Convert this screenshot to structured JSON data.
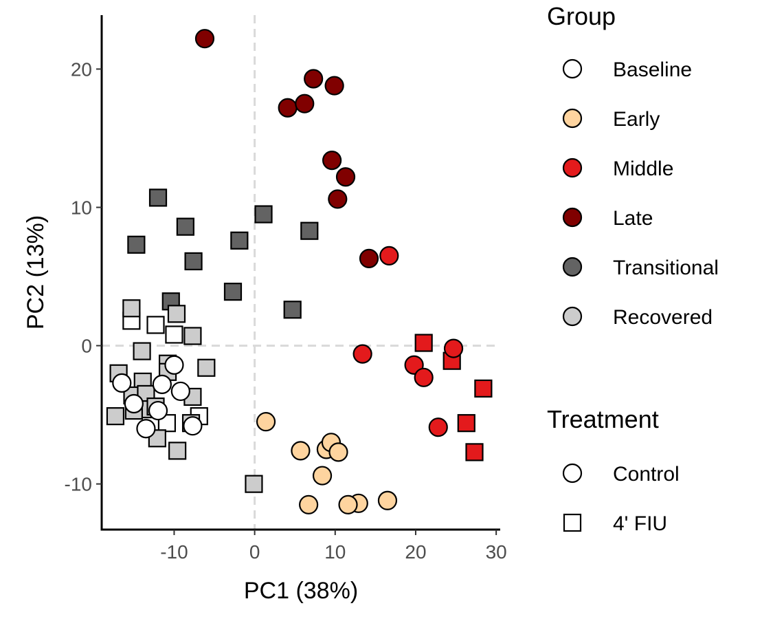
{
  "chart_data": {
    "type": "scatter",
    "title": "",
    "xlabel": "PC1 (38%)",
    "ylabel": "PC2 (13%)",
    "xlim": [
      -19,
      30.5
    ],
    "ylim": [
      -13.3,
      23.9
    ],
    "xticks": [
      -10,
      0,
      10,
      20,
      30
    ],
    "yticks": [
      -10,
      0,
      10,
      20
    ],
    "xtick_labels": [
      "-10",
      "0",
      "10",
      "20",
      "30"
    ],
    "ytick_labels": [
      "-10",
      "0",
      "10",
      "20"
    ],
    "grid": false,
    "reference_lines": {
      "x": 0,
      "y": 0,
      "style": "dashed",
      "color": "#d9d9d9"
    },
    "legend_placement": "right",
    "groups": [
      {
        "name": "Baseline",
        "color": "#ffffff"
      },
      {
        "name": "Early",
        "color": "#fed49f"
      },
      {
        "name": "Middle",
        "color": "#e31a1c"
      },
      {
        "name": "Late",
        "color": "#800000"
      },
      {
        "name": "Transitional",
        "color": "#636363"
      },
      {
        "name": "Recovered",
        "color": "#cccccc"
      }
    ],
    "treatments": [
      {
        "name": "Control",
        "shape": "circle"
      },
      {
        "name": "4' FIU",
        "shape": "square"
      }
    ],
    "legend": {
      "group_title": "Group",
      "treatment_title": "Treatment"
    },
    "series": [
      {
        "group": "Baseline",
        "treatment": "Control",
        "points": [
          [
            -16.5,
            -2.7
          ],
          [
            -15,
            -4.2
          ],
          [
            -12,
            -4.7
          ],
          [
            -11.5,
            -2.8
          ],
          [
            -10,
            -1.4
          ],
          [
            -9.2,
            -3.3
          ],
          [
            -7.7,
            -5.8
          ],
          [
            -13.5,
            -6
          ]
        ]
      },
      {
        "group": "Baseline",
        "treatment": "4' FIU",
        "points": [
          [
            -15.3,
            1.8
          ],
          [
            -12.3,
            1.5
          ],
          [
            -10,
            0.8
          ],
          [
            -6.9,
            -5.1
          ],
          [
            -10.9,
            -5.6
          ]
        ]
      },
      {
        "group": "Early",
        "treatment": "Control",
        "points": [
          [
            1.4,
            -5.5
          ],
          [
            5.7,
            -7.6
          ],
          [
            8.9,
            -7.5
          ],
          [
            9.5,
            -7
          ],
          [
            10.4,
            -7.7
          ],
          [
            8.4,
            -9.4
          ],
          [
            6.7,
            -11.5
          ],
          [
            12.9,
            -11.4
          ],
          [
            11.6,
            -11.5
          ],
          [
            16.5,
            -11.2
          ]
        ]
      },
      {
        "group": "Middle",
        "treatment": "Control",
        "points": [
          [
            16.7,
            6.5
          ],
          [
            13.4,
            -0.6
          ],
          [
            19.8,
            -1.4
          ],
          [
            21,
            -2.3
          ],
          [
            24.7,
            -0.2
          ],
          [
            22.8,
            -5.9
          ]
        ]
      },
      {
        "group": "Middle",
        "treatment": "4' FIU",
        "points": [
          [
            21,
            0.2
          ],
          [
            24.5,
            -1.1
          ],
          [
            28.4,
            -3.1
          ],
          [
            26.3,
            -5.6
          ],
          [
            27.3,
            -7.7
          ]
        ]
      },
      {
        "group": "Late",
        "treatment": "Control",
        "points": [
          [
            -6.2,
            22.2
          ],
          [
            7.3,
            19.3
          ],
          [
            9.9,
            18.8
          ],
          [
            4.1,
            17.2
          ],
          [
            6.2,
            17.5
          ],
          [
            9.6,
            13.4
          ],
          [
            11.3,
            12.2
          ],
          [
            10.3,
            10.6
          ],
          [
            14.2,
            6.3
          ]
        ]
      },
      {
        "group": "Transitional",
        "treatment": "4' FIU",
        "points": [
          [
            -12,
            10.7
          ],
          [
            -8.6,
            8.6
          ],
          [
            -14.7,
            7.3
          ],
          [
            -7.6,
            6.1
          ],
          [
            1.1,
            9.5
          ],
          [
            -1.9,
            7.6
          ],
          [
            6.8,
            8.3
          ],
          [
            -2.7,
            3.9
          ],
          [
            4.7,
            2.6
          ],
          [
            -10.4,
            3.2
          ]
        ]
      },
      {
        "group": "Recovered",
        "treatment": "4' FIU",
        "points": [
          [
            -15.3,
            2.7
          ],
          [
            -9.7,
            2.3
          ],
          [
            -7.7,
            0.7
          ],
          [
            -14,
            -0.4
          ],
          [
            -10.8,
            -1.3
          ],
          [
            -10.8,
            -1.9
          ],
          [
            -6,
            -1.6
          ],
          [
            -16.9,
            -2
          ],
          [
            -13.9,
            -2.6
          ],
          [
            -15.2,
            -3.6
          ],
          [
            -13.5,
            -3.5
          ],
          [
            -7.7,
            -3.7
          ],
          [
            -13.7,
            -4.6
          ],
          [
            -12.3,
            -4.4
          ],
          [
            -15,
            -4.7
          ],
          [
            -17.3,
            -5.1
          ],
          [
            -7.9,
            -5.6
          ],
          [
            -12.1,
            -6.7
          ],
          [
            -9.6,
            -7.6
          ],
          [
            -0.1,
            -10
          ]
        ]
      }
    ]
  }
}
